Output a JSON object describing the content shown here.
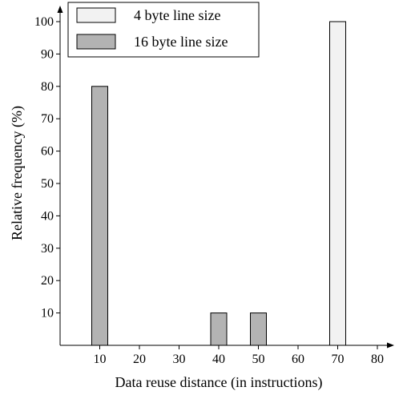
{
  "chart_data": {
    "type": "bar",
    "xlabel": "Data reuse distance (in instructions)",
    "ylabel": "Relative frequency (%)",
    "x_ticks": [
      10,
      20,
      30,
      40,
      50,
      60,
      70,
      80
    ],
    "y_ticks": [
      10,
      20,
      30,
      40,
      50,
      60,
      70,
      80,
      90,
      100
    ],
    "xlim": [
      0,
      85
    ],
    "ylim": [
      0,
      100
    ],
    "grid": false,
    "legend_position": "top-left",
    "series": [
      {
        "name": "4 byte line size",
        "color": "#f2f2f2",
        "points": [
          {
            "x": 70,
            "y": 100
          }
        ]
      },
      {
        "name": "16 byte line size",
        "color": "#b3b3b3",
        "points": [
          {
            "x": 10,
            "y": 80
          },
          {
            "x": 40,
            "y": 10
          },
          {
            "x": 50,
            "y": 10
          }
        ]
      }
    ]
  }
}
